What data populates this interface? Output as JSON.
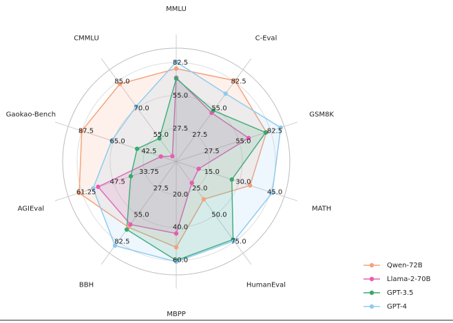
{
  "chart_data": {
    "type": "radar",
    "axes": [
      {
        "name": "MMLU",
        "rlim": [
          0,
          94.5
        ],
        "rticks": [
          27.5,
          {
            "value": 55,
            "label": "55.0"
          },
          82.5
        ]
      },
      {
        "name": "C-Eval",
        "rlim": [
          0,
          94.5
        ],
        "rticks": [
          27.5,
          {
            "value": 55,
            "label": "55.0"
          },
          82.5
        ]
      },
      {
        "name": "GSM8K",
        "rlim": [
          0,
          94.5
        ],
        "rticks": [
          27.5,
          {
            "value": 55,
            "label": "55.0"
          },
          82.5
        ]
      },
      {
        "name": "MATH",
        "rlim": [
          0,
          51.5
        ],
        "rticks": [
          {
            "value": 15,
            "label": "15.0"
          },
          {
            "value": 30,
            "label": "30.0"
          },
          {
            "value": 45,
            "label": "45.0"
          }
        ]
      },
      {
        "name": "HumanEval",
        "rlim": [
          0,
          86
        ],
        "rticks": [
          {
            "value": 25,
            "label": "25.0"
          },
          {
            "value": 50,
            "label": "50.0"
          },
          {
            "value": 75,
            "label": "75.0"
          }
        ]
      },
      {
        "name": "MBPP",
        "rlim": [
          0,
          69
        ],
        "rticks": [
          {
            "value": 20,
            "label": "20.0"
          },
          {
            "value": 40,
            "label": "40.0"
          },
          {
            "value": 60,
            "label": "60.0"
          }
        ]
      },
      {
        "name": "BBH",
        "rlim": [
          0,
          94.5
        ],
        "rticks": [
          27.5,
          {
            "value": 55,
            "label": "55.0"
          },
          82.5
        ]
      },
      {
        "name": "AGIEval",
        "rlim": [
          20,
          67.3
        ],
        "rticks": [
          33.75,
          47.5,
          61.25
        ]
      },
      {
        "name": "Gaokao-Bench",
        "rlim": [
          20,
          97.3
        ],
        "rticks": [
          42.5,
          {
            "value": 65,
            "label": "65.0"
          },
          87.5
        ]
      },
      {
        "name": "CMMLU",
        "rlim": [
          40,
          91.6
        ],
        "rticks": [
          {
            "value": 55,
            "label": "55.0"
          },
          {
            "value": 70,
            "label": "70.0"
          },
          {
            "value": 85,
            "label": "85.0"
          }
        ]
      }
    ],
    "series": [
      {
        "name": "Qwen-72B",
        "color": "#f5a27a",
        "values": [
          77.4,
          83.3,
          78.9,
          35.2,
          35.4,
          52.2,
          67.7,
          62.5,
          87.6,
          83.6
        ]
      },
      {
        "name": "Llama-2-70B",
        "color": "#ea5bb1",
        "values": [
          69.8,
          50.1,
          63.3,
          10.7,
          20.1,
          43.8,
          64.9,
          54.2,
          31,
          43
        ]
      },
      {
        "name": "GPT-3.5",
        "color": "#3aa86b",
        "values": [
          69.1,
          52.5,
          78.2,
          26.5,
          73.2,
          60.2,
          70.1,
          39.9,
          48,
          53
        ]
      },
      {
        "name": "GPT-4",
        "color": "#8ecbf0",
        "values": [
          83.0,
          69.9,
          91.4,
          45.8,
          74.4,
          61.0,
          86.7,
          56.4,
          66.2,
          71.0
        ]
      }
    ],
    "grid": true,
    "legend": "lower right"
  }
}
